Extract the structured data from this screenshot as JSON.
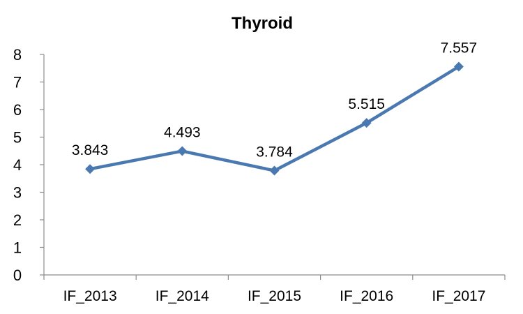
{
  "chart_data": {
    "type": "line",
    "title": "Thyroid",
    "xlabel": "",
    "ylabel": "",
    "categories": [
      "IF_2013",
      "IF_2014",
      "IF_2015",
      "IF_2016",
      "IF_2017"
    ],
    "series": [
      {
        "values": [
          3.843,
          4.493,
          3.784,
          5.515,
          7.557
        ],
        "labels": [
          "3.843",
          "4.493",
          "3.784",
          "5.515",
          "7.557"
        ],
        "color": "#4a78b0",
        "marker": "diamond"
      }
    ],
    "yticks": [
      "0",
      "1",
      "2",
      "3",
      "4",
      "5",
      "6",
      "7",
      "8"
    ],
    "ylim": [
      0,
      8
    ],
    "grid": false,
    "legend": "none"
  }
}
